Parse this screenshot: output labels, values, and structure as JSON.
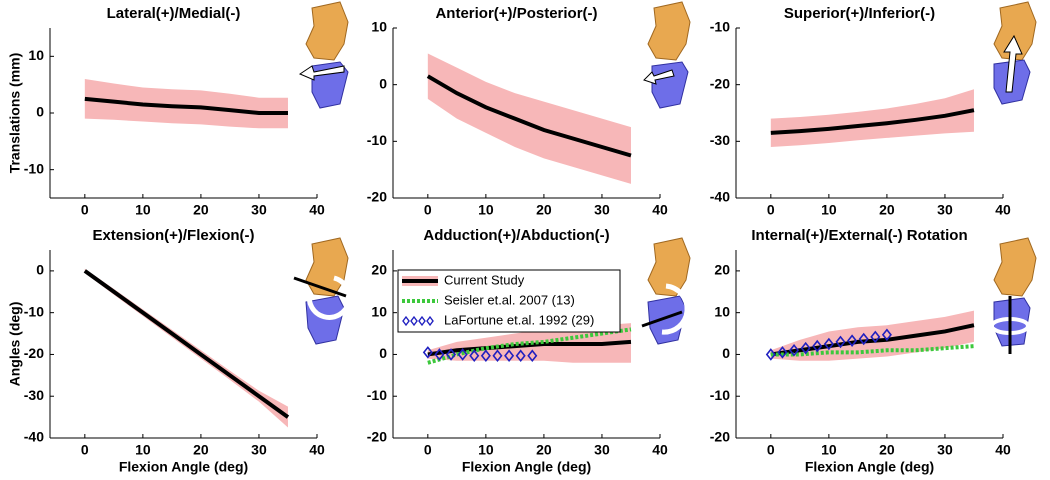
{
  "chart_data": [
    {
      "type": "line",
      "title": "Lateral(+)/Medial(-)",
      "ylabel": "Translations (mm)",
      "x": [
        0,
        5,
        10,
        15,
        20,
        25,
        30,
        35
      ],
      "xlim": [
        -6,
        40
      ],
      "xticks": [
        0,
        10,
        20,
        30,
        40
      ],
      "ylim": [
        -15,
        15
      ],
      "yticks": [
        -10,
        0,
        10
      ],
      "band_color": "#f7b7b8",
      "series": [
        {
          "color": "#000000",
          "values": [
            2.5,
            2,
            1.5,
            1.2,
            1,
            0.5,
            0,
            0
          ],
          "lower": [
            -1,
            -1.2,
            -1.5,
            -1.8,
            -2,
            -2.4,
            -2.7,
            -2.7
          ],
          "upper": [
            6,
            5.2,
            4.5,
            4.2,
            4,
            3.4,
            2.7,
            2.7
          ]
        }
      ]
    },
    {
      "type": "line",
      "title": "Anterior(+)/Posterior(-)",
      "x": [
        0,
        5,
        10,
        15,
        20,
        25,
        30,
        35
      ],
      "xlim": [
        -6,
        40
      ],
      "xticks": [
        0,
        10,
        20,
        30,
        40
      ],
      "ylim": [
        -20,
        10
      ],
      "yticks": [
        -20,
        -10,
        0,
        10
      ],
      "band_color": "#f7b7b8",
      "series": [
        {
          "color": "#000000",
          "values": [
            1.5,
            -1.5,
            -4,
            -6,
            -8,
            -9.5,
            -11,
            -12.5
          ],
          "lower": [
            -2.5,
            -6,
            -8.5,
            -11,
            -13,
            -14.5,
            -16,
            -17.5
          ],
          "upper": [
            5.5,
            3,
            0.5,
            -1.5,
            -3,
            -4.5,
            -6,
            -7.5
          ]
        }
      ]
    },
    {
      "type": "line",
      "title": "Superior(+)/Inferior(-)",
      "x": [
        0,
        5,
        10,
        15,
        20,
        25,
        30,
        35
      ],
      "xlim": [
        -6,
        40
      ],
      "xticks": [
        0,
        10,
        20,
        30,
        40
      ],
      "ylim": [
        -40,
        -10
      ],
      "yticks": [
        -40,
        -30,
        -20,
        -10
      ],
      "band_color": "#f7b7b8",
      "series": [
        {
          "color": "#000000",
          "values": [
            -28.5,
            -28.2,
            -27.8,
            -27.3,
            -26.8,
            -26.2,
            -25.5,
            -24.5
          ],
          "lower": [
            -31,
            -30.7,
            -30.3,
            -29.8,
            -29.4,
            -29,
            -28.6,
            -28.3
          ],
          "upper": [
            -26,
            -25.7,
            -25.3,
            -24.8,
            -24.2,
            -23.4,
            -22.4,
            -20.8
          ]
        }
      ]
    },
    {
      "type": "line",
      "title": "Extension(+)/Flexion(-)",
      "ylabel": "Angles (deg)",
      "xlabel": "Flexion Angle (deg)",
      "x": [
        0,
        5,
        10,
        15,
        20,
        25,
        30,
        35
      ],
      "xlim": [
        -6,
        40
      ],
      "xticks": [
        0,
        10,
        20,
        30,
        40
      ],
      "ylim": [
        -40,
        5
      ],
      "yticks": [
        -40,
        -30,
        -20,
        -10,
        0
      ],
      "band_color": "#f7b7b8",
      "series": [
        {
          "color": "#000000",
          "values": [
            0,
            -5,
            -10,
            -15,
            -20,
            -25,
            -30,
            -35
          ],
          "lower": [
            -0.5,
            -5.7,
            -10.8,
            -15.9,
            -21,
            -26.1,
            -31.3,
            -37.5
          ],
          "upper": [
            0.5,
            -4.3,
            -9.2,
            -14.1,
            -19,
            -23.9,
            -28.7,
            -32.5
          ]
        }
      ]
    },
    {
      "type": "line",
      "title": "Adduction(+)/Abduction(-)",
      "xlabel": "Flexion Angle (deg)",
      "x": [
        0,
        5,
        10,
        15,
        20,
        25,
        30,
        35
      ],
      "xlim": [
        -6,
        40
      ],
      "xticks": [
        0,
        10,
        20,
        30,
        40
      ],
      "ylim": [
        -20,
        25
      ],
      "yticks": [
        -20,
        -10,
        0,
        10,
        20
      ],
      "band_color": "#f7b7b8",
      "legend": "upper left",
      "series": [
        {
          "name": "Current Study",
          "color": "#000000",
          "values": [
            0,
            1,
            1.5,
            2,
            2.5,
            2.5,
            2.5,
            3
          ],
          "lower": [
            -1,
            -1.5,
            -1.5,
            -1.5,
            -1.5,
            -2,
            -2,
            -2
          ],
          "upper": [
            1,
            3,
            4,
            5,
            6,
            6.5,
            7,
            7.5
          ]
        },
        {
          "name": "Seisler et.al. 2007 (13)",
          "color": "#3cc83c",
          "dash": "dotted",
          "values": [
            -2,
            0,
            1.5,
            2.5,
            3,
            4,
            5,
            6
          ]
        },
        {
          "name": "LaFortune et.al. 1992 (29)",
          "color": "#2020c0",
          "marker": "diamond",
          "x": [
            0,
            2,
            4,
            6,
            8,
            10,
            12,
            14,
            16,
            18
          ],
          "values": [
            0.5,
            0,
            0,
            0,
            -0.3,
            -0.3,
            -0.3,
            -0.3,
            -0.3,
            -0.3
          ]
        }
      ]
    },
    {
      "type": "line",
      "title": "Internal(+)/External(-) Rotation",
      "xlabel": "Flexion Angle (deg)",
      "x": [
        0,
        5,
        10,
        15,
        20,
        25,
        30,
        35
      ],
      "xlim": [
        -6,
        40
      ],
      "xticks": [
        0,
        10,
        20,
        30,
        40
      ],
      "ylim": [
        -20,
        25
      ],
      "yticks": [
        -20,
        -10,
        0,
        10,
        20
      ],
      "band_color": "#f7b7b8",
      "series": [
        {
          "color": "#000000",
          "values": [
            0,
            1,
            2,
            3,
            3.5,
            4.5,
            5.5,
            7
          ],
          "lower": [
            -1,
            -1.5,
            -1.5,
            -1,
            -0.5,
            0.5,
            1.5,
            3
          ],
          "upper": [
            1,
            3.5,
            5.5,
            6.5,
            7,
            8,
            9,
            10.5
          ]
        },
        {
          "color": "#3cc83c",
          "dash": "dotted",
          "values": [
            0,
            0,
            0.5,
            0.5,
            1,
            1,
            1.5,
            2
          ]
        },
        {
          "color": "#2020c0",
          "marker": "diamond",
          "x": [
            0,
            2,
            4,
            6,
            8,
            10,
            12,
            14,
            16,
            18,
            20
          ],
          "values": [
            0,
            0.5,
            1,
            1.5,
            2,
            2.5,
            3,
            3.3,
            3.7,
            4.2,
            4.7
          ]
        }
      ]
    }
  ]
}
